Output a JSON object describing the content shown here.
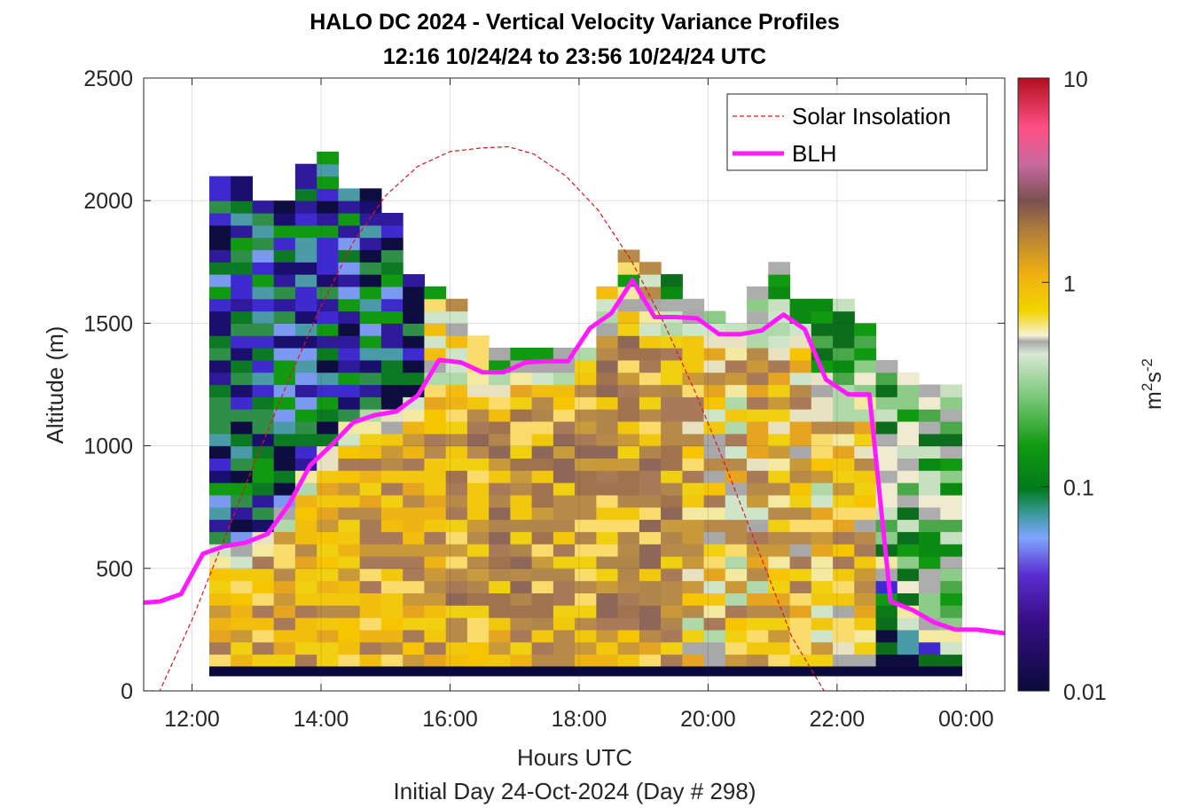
{
  "chart_data": {
    "type": "heatmap",
    "title": "HALO DC 2024 - Vertical Velocity Variance Profiles",
    "subtitle": "12:16 10/24/24 to 23:56 10/24/24  UTC",
    "xlabel": "Hours UTC",
    "xlabel2": "Initial Day 24-Oct-2024 (Day # 298)",
    "ylabel": "Altitude (m)",
    "colorbar_label_base": "m",
    "colorbar_label_exp1": "2",
    "colorbar_label_mid": "s",
    "colorbar_label_exp2": "-2",
    "x_ticks": [
      "12:00",
      "14:00",
      "16:00",
      "18:00",
      "20:00",
      "22:00",
      "00:00"
    ],
    "x_tick_hours": [
      12,
      14,
      16,
      18,
      20,
      22,
      24
    ],
    "xlim_hours": [
      11.25,
      24.6
    ],
    "y_ticks": [
      "0",
      "500",
      "1000",
      "1500",
      "2000",
      "2500"
    ],
    "y_tick_values": [
      0,
      500,
      1000,
      1500,
      2000,
      2500
    ],
    "ylim": [
      0,
      2500
    ],
    "colorbar_ticks": [
      "0.01",
      "0.1",
      "1",
      "10"
    ],
    "colorbar_tick_values": [
      0.01,
      0.1,
      1,
      10
    ],
    "colorbar_scale": "log",
    "grid": true,
    "legend_position": "top-right",
    "legend": [
      {
        "name": "Solar Insolation",
        "style": "dashed",
        "color": "#e0141e"
      },
      {
        "name": "BLH",
        "style": "solid",
        "color": "#ff1aff"
      }
    ],
    "heatmap": {
      "start_hour": 12.267,
      "end_hour": 23.933,
      "bin_minutes": 20,
      "alt_bin_m": 50,
      "first_alt_m": 100,
      "note_top_altitude_per_column_m": [
        2100,
        2100,
        2000,
        2000,
        2150,
        2200,
        2050,
        2050,
        1950,
        1700,
        1650,
        1600,
        1450,
        1400,
        1400,
        1400,
        1400,
        1400,
        1650,
        1800,
        1750,
        1700,
        1600,
        1550,
        1500,
        1650,
        1750,
        1600,
        1600,
        1600,
        1500,
        1350,
        1300,
        1250,
        1250
      ]
    },
    "series": [
      {
        "name": "BLH",
        "x": [
          11.25,
          11.5,
          11.83,
          12.17,
          12.5,
          12.83,
          13.17,
          13.5,
          13.83,
          14.17,
          14.5,
          14.83,
          15.17,
          15.5,
          15.83,
          16.17,
          16.5,
          16.83,
          17.17,
          17.5,
          17.83,
          18.17,
          18.5,
          18.83,
          19.17,
          19.5,
          19.83,
          20.17,
          20.5,
          20.83,
          21.17,
          21.5,
          21.83,
          22.17,
          22.5,
          22.83,
          23.17,
          23.5,
          23.83,
          24.17,
          24.6
        ],
        "y": [
          360,
          365,
          395,
          560,
          590,
          605,
          640,
          760,
          920,
          1005,
          1095,
          1125,
          1140,
          1205,
          1350,
          1340,
          1300,
          1300,
          1340,
          1345,
          1345,
          1480,
          1540,
          1675,
          1525,
          1525,
          1520,
          1455,
          1455,
          1470,
          1535,
          1475,
          1270,
          1210,
          1210,
          365,
          330,
          280,
          250,
          250,
          235
        ]
      },
      {
        "name": "Solar Insolation",
        "x": [
          11.25,
          11.5,
          12.0,
          12.5,
          13.0,
          13.5,
          14.0,
          14.5,
          15.0,
          15.5,
          16.0,
          16.5,
          16.9,
          17.3,
          17.8,
          18.3,
          18.8,
          19.3,
          19.8,
          20.3,
          20.8,
          21.3,
          21.8,
          22.2,
          22.6,
          23.0,
          23.5,
          24.0,
          24.6
        ],
        "y": [
          0,
          0,
          290,
          620,
          950,
          1270,
          1570,
          1830,
          2020,
          2140,
          2200,
          2215,
          2220,
          2190,
          2100,
          1960,
          1760,
          1510,
          1220,
          900,
          560,
          220,
          0,
          0,
          0,
          0,
          0,
          0,
          0
        ]
      }
    ]
  }
}
